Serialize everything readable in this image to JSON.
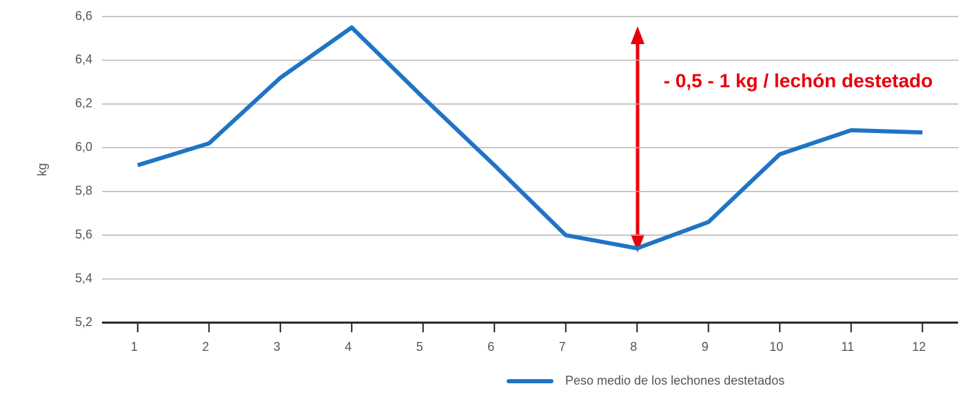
{
  "chart_data": {
    "type": "line",
    "y_label": "kg",
    "categories": [
      "1",
      "2",
      "3",
      "4",
      "5",
      "6",
      "7",
      "8",
      "9",
      "10",
      "11",
      "12"
    ],
    "series": [
      {
        "name": "Peso medio de los lechones destetados",
        "color": "#1f74c4",
        "values": [
          5.92,
          6.02,
          6.32,
          6.55,
          6.23,
          5.92,
          5.6,
          5.54,
          5.66,
          5.97,
          6.08,
          6.07
        ]
      }
    ],
    "ylim": [
      5.2,
      6.6
    ],
    "yticks": [
      {
        "value": 5.2,
        "label": "5,2"
      },
      {
        "value": 5.4,
        "label": "5,4"
      },
      {
        "value": 5.6,
        "label": "5,6"
      },
      {
        "value": 5.8,
        "label": "5,8"
      },
      {
        "value": 6.0,
        "label": "6,0"
      },
      {
        "value": 6.2,
        "label": "6,2"
      },
      {
        "value": 6.4,
        "label": "6,4"
      },
      {
        "value": 6.6,
        "label": "6,6"
      }
    ],
    "grid": true,
    "annotation": "- 0,5 - 1 kg / lechón destetado",
    "legend_position": "bottom"
  }
}
